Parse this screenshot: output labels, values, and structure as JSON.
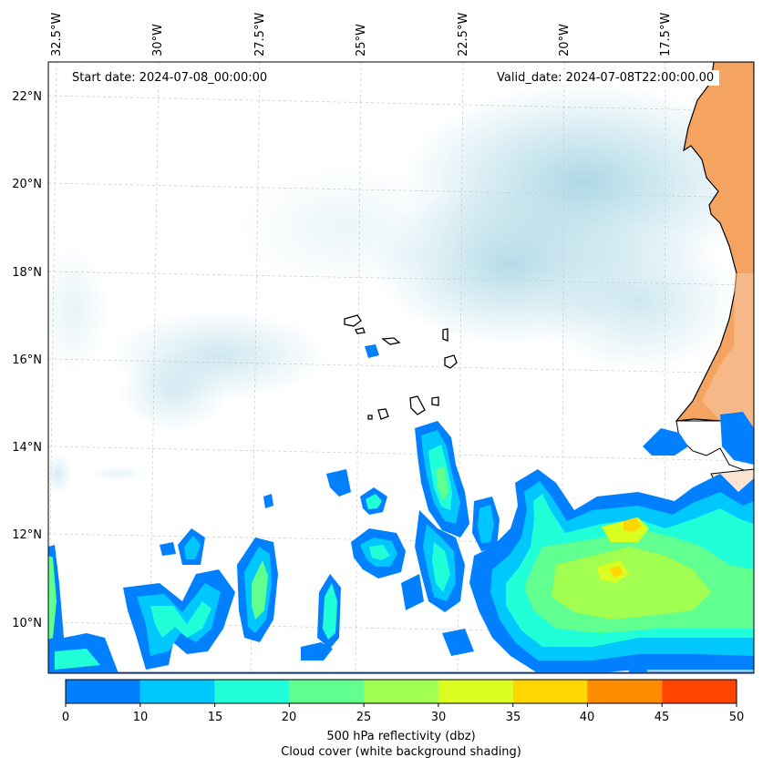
{
  "map": {
    "start_label": "Start date: 2024-07-08_00:00:00",
    "valid_label": "Valid_date: 2024-07-08T22:00:00.00",
    "lon_labels": [
      "32.5°W",
      "30°W",
      "27.5°W",
      "25°W",
      "22.5°W",
      "20°W",
      "17.5°W"
    ],
    "lat_labels": [
      "22°N",
      "20°N",
      "18°N",
      "16°N",
      "14°N",
      "12°N",
      "10°N"
    ],
    "land_color": "#f4a460",
    "cloud_color": "#add8e6"
  },
  "colorbar": {
    "ticks": [
      "0",
      "10",
      "15",
      "20",
      "25",
      "30",
      "35",
      "40",
      "45",
      "50"
    ],
    "colors": [
      "#0080ff",
      "#00c8ff",
      "#20ffd8",
      "#60ff90",
      "#a0ff50",
      "#d8ff20",
      "#ffd700",
      "#ff8c00",
      "#ff4500"
    ],
    "label_line1": "500 hPa reflectivity (dbz)",
    "label_line2": "Cloud cover (white background shading)"
  }
}
